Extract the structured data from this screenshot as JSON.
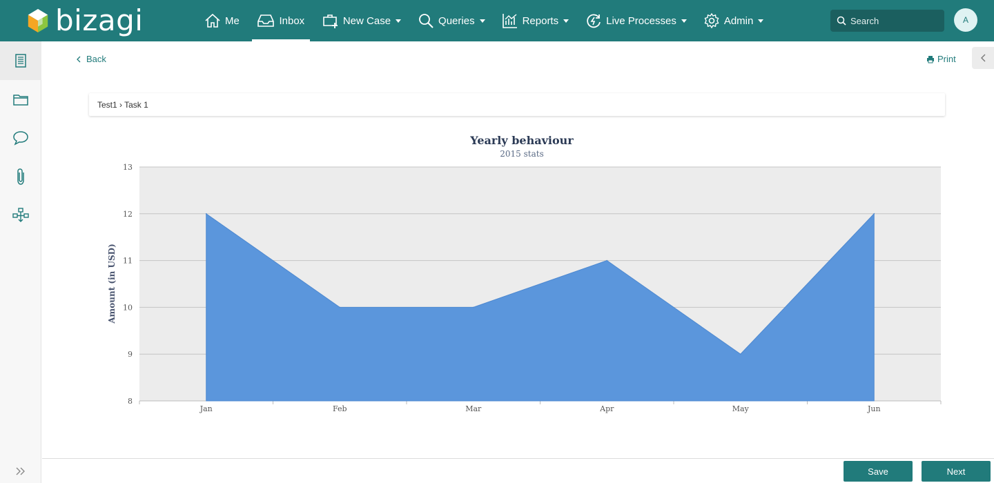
{
  "app": {
    "logo_text": "bizagi"
  },
  "nav": {
    "items": [
      {
        "label": "Me",
        "icon": "home-icon",
        "dropdown": false
      },
      {
        "label": "Inbox",
        "icon": "inbox-icon",
        "dropdown": false,
        "active": true
      },
      {
        "label": "New Case",
        "icon": "new-case-icon",
        "dropdown": true
      },
      {
        "label": "Queries",
        "icon": "search-icon",
        "dropdown": true
      },
      {
        "label": "Reports",
        "icon": "chart-icon",
        "dropdown": true
      },
      {
        "label": "Live Processes",
        "icon": "live-processes-icon",
        "dropdown": true
      },
      {
        "label": "Admin",
        "icon": "gear-icon",
        "dropdown": true
      }
    ],
    "search_placeholder": "Search",
    "avatar_initial": "A"
  },
  "sidebar": {
    "items": [
      {
        "icon": "form-icon",
        "active": true
      },
      {
        "icon": "folder-icon"
      },
      {
        "icon": "comment-icon"
      },
      {
        "icon": "attachment-icon"
      },
      {
        "icon": "workflow-icon"
      }
    ],
    "expand_icon": "double-chevron-right-icon"
  },
  "toolbar": {
    "back_label": "Back",
    "print_label": "Print"
  },
  "breadcrumb": {
    "text": "Test1 › Task 1"
  },
  "chart_data": {
    "type": "area",
    "title": "Yearly behaviour",
    "subtitle": "2015 stats",
    "ylabel": "Amount (in USD)",
    "xlabel": "",
    "categories": [
      "Jan",
      "Feb",
      "Mar",
      "Apr",
      "May",
      "Jun"
    ],
    "values": [
      12,
      10,
      10,
      11,
      9,
      12
    ],
    "ylim": [
      8,
      13
    ],
    "yticks": [
      8,
      9,
      10,
      11,
      12,
      13
    ],
    "grid": true,
    "legend": "none",
    "colors": {
      "fill": "#5b96dc",
      "stroke": "#4d88d0",
      "plot_bg": "#ececec",
      "title": "#2b3a55"
    }
  },
  "footer": {
    "save_label": "Save",
    "next_label": "Next"
  },
  "colors": {
    "brand": "#217b7b",
    "brand_dark": "#1b5f5f"
  }
}
